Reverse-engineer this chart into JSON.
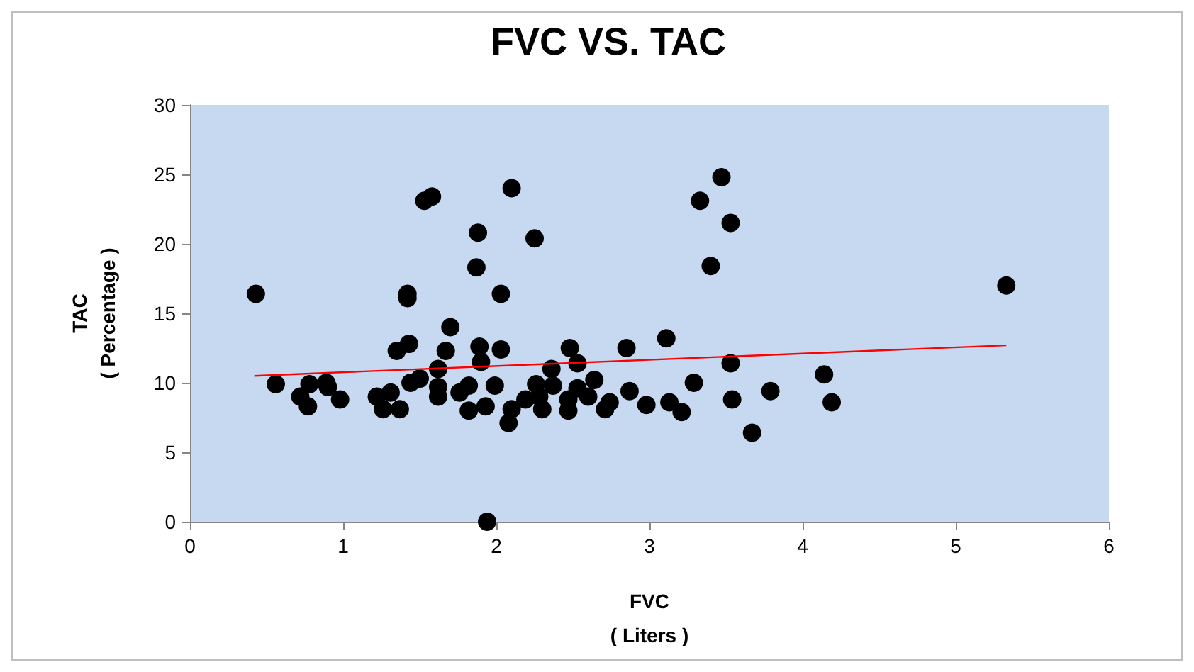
{
  "chart_data": {
    "type": "scatter",
    "title": "FVC VS. TAC",
    "xlabel": "FVC\n( Liters )",
    "ylabel": "TAC\n( Percentage )",
    "xlim": [
      0,
      6
    ],
    "xticks": [
      0,
      1,
      2,
      3,
      4,
      5,
      6
    ],
    "ylim": [
      0,
      30
    ],
    "yticks": [
      0,
      5,
      10,
      15,
      20,
      25,
      30
    ],
    "grid": false,
    "marker": "circle",
    "series": [
      {
        "type": "scatter",
        "color": "#000000",
        "x": [
          0.43,
          0.56,
          0.72,
          0.77,
          0.78,
          0.89,
          0.9,
          0.98,
          1.22,
          1.26,
          1.31,
          1.37,
          1.35,
          1.43,
          1.42,
          1.42,
          1.44,
          1.5,
          1.53,
          1.58,
          1.62,
          1.62,
          1.62,
          1.67,
          1.7,
          1.76,
          1.82,
          1.82,
          1.87,
          1.88,
          1.89,
          1.9,
          1.93,
          1.94,
          1.99,
          2.03,
          2.03,
          2.1,
          2.25,
          2.1,
          2.08,
          2.19,
          2.3,
          2.36,
          2.48,
          2.53,
          2.26,
          2.28,
          2.37,
          2.47,
          2.47,
          2.53,
          2.6,
          2.64,
          2.71,
          2.74,
          2.85,
          2.87,
          2.98,
          3.11,
          3.13,
          3.21,
          3.29,
          3.47,
          3.33,
          3.53,
          3.4,
          3.53,
          3.54,
          3.67,
          3.79,
          4.14,
          4.19,
          5.33
        ],
        "values": [
          16.4,
          9.9,
          9.0,
          8.3,
          9.9,
          10.0,
          9.7,
          8.8,
          9.0,
          8.1,
          9.3,
          8.1,
          12.3,
          12.8,
          16.4,
          16.1,
          10.0,
          10.3,
          23.1,
          23.4,
          11.0,
          9.7,
          9.0,
          12.3,
          14.0,
          9.3,
          9.8,
          8.0,
          18.3,
          20.8,
          12.6,
          11.5,
          8.3,
          0.0,
          9.8,
          16.4,
          12.4,
          24.0,
          20.4,
          8.1,
          7.1,
          8.8,
          8.1,
          11.0,
          12.5,
          11.4,
          9.9,
          9.0,
          9.8,
          8.0,
          8.8,
          9.6,
          9.0,
          10.2,
          8.1,
          8.6,
          12.5,
          9.4,
          8.4,
          13.2,
          8.6,
          7.9,
          10.0,
          24.8,
          23.1,
          21.5,
          18.4,
          11.4,
          8.8,
          6.4,
          9.4,
          10.6,
          8.6,
          17.0
        ]
      },
      {
        "type": "line",
        "color": "#ff0000",
        "marker": "none",
        "x": [
          0.42,
          5.33
        ],
        "values": [
          10.5,
          12.7
        ]
      }
    ]
  }
}
